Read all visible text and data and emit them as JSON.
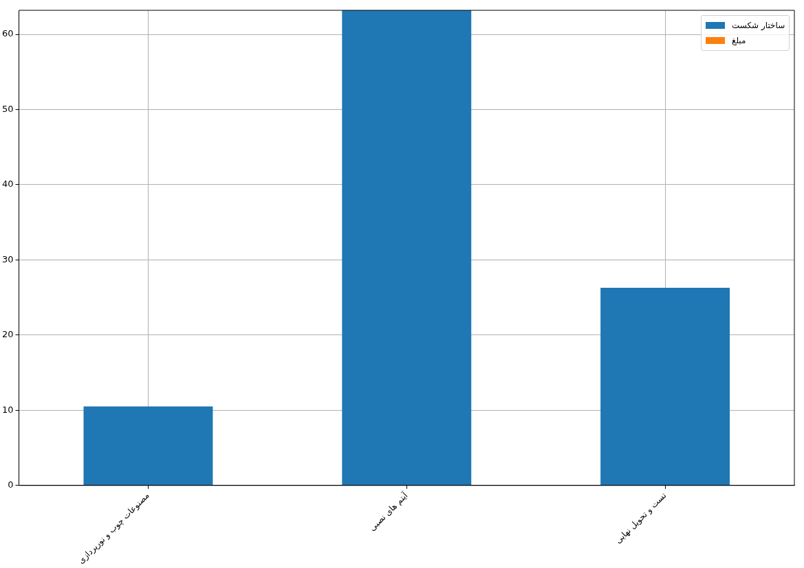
{
  "chart_data": {
    "type": "bar",
    "categories": [
      "مصنوعات چوب و نورپردازی",
      "آیتم های نصبی",
      "تست و تحویل نهایی"
    ],
    "series": [
      {
        "name": "ساختار شکست",
        "color": "#1f77b4",
        "values": [
          10.5,
          63.2,
          26.3
        ]
      },
      {
        "name": "مبلغ",
        "color": "#ff7f0e",
        "values": [
          null,
          null,
          null
        ]
      }
    ],
    "ylim": [
      0,
      63.2
    ],
    "yticks": [
      0,
      10,
      20,
      30,
      40,
      50,
      60
    ],
    "grid": true,
    "legend": "top right"
  }
}
